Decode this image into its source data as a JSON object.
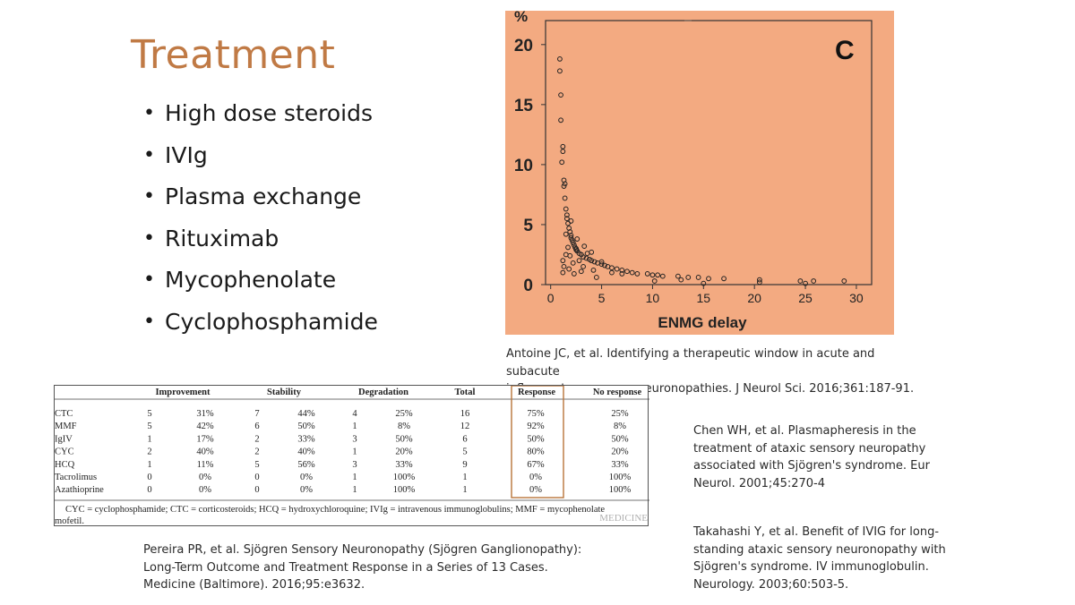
{
  "slide": {
    "title": "Treatment",
    "bullets": [
      "High dose steroids",
      "IVIg",
      "Plasma exchange",
      "Rituximab",
      "Mycophenolate",
      "Cyclophosphamide"
    ]
  },
  "colors": {
    "title": "#c07a45",
    "chart_background": "#f3aa81",
    "response_box": "#b8743a"
  },
  "chart_data": {
    "type": "scatter",
    "panel_label": "C",
    "xlabel": "ENMG delay",
    "ylabel": "%",
    "xlim": [
      -0.5,
      31.5
    ],
    "ylim": [
      0,
      22
    ],
    "xticks": [
      "0",
      "5",
      "10",
      "15",
      "20",
      "25",
      "30"
    ],
    "yticks": [
      "0",
      "5",
      "10",
      "15",
      "20"
    ],
    "grid": false,
    "x": [
      0.9,
      0.9,
      1.0,
      1.0,
      1.2,
      1.2,
      1.1,
      1.3,
      1.3,
      1.4,
      1.5,
      1.6,
      1.6,
      1.7,
      1.8,
      1.9,
      2.0,
      2.0,
      2.1,
      2.2,
      2.3,
      2.4,
      2.5,
      2.6,
      2.8,
      3.0,
      3.2,
      3.5,
      3.8,
      4.0,
      4.3,
      4.6,
      5.0,
      5.3,
      5.6,
      6.0,
      6.5,
      7.0,
      7.5,
      8.0,
      8.5,
      9.5,
      10.0,
      10.5,
      11.0,
      12.5,
      13.5,
      14.5,
      15.5,
      17.0,
      20.5,
      24.5,
      25.8,
      28.8,
      1.2,
      1.3,
      1.5,
      1.7,
      1.9,
      2.2,
      2.5,
      2.8,
      3.2,
      3.6,
      4.2,
      5.0,
      6.0,
      1.4,
      2.0,
      2.6,
      3.3,
      4.0,
      1.2,
      1.5,
      1.8,
      2.3,
      3.0,
      4.5,
      7.0,
      10.2,
      12.8,
      15.0,
      20.5,
      25.0
    ],
    "y": [
      18.8,
      17.8,
      15.8,
      13.7,
      11.5,
      11.1,
      10.2,
      8.7,
      8.2,
      7.2,
      6.3,
      5.8,
      5.5,
      5.1,
      4.7,
      4.4,
      4.1,
      3.9,
      3.7,
      3.5,
      3.3,
      3.1,
      3.0,
      2.8,
      2.6,
      2.5,
      2.3,
      2.2,
      2.1,
      2.0,
      1.9,
      1.8,
      1.7,
      1.6,
      1.5,
      1.4,
      1.3,
      1.2,
      1.1,
      1.0,
      0.9,
      0.9,
      0.8,
      0.8,
      0.7,
      0.7,
      0.6,
      0.6,
      0.5,
      0.5,
      0.4,
      0.3,
      0.3,
      0.3,
      2.0,
      1.5,
      4.2,
      3.1,
      2.4,
      1.8,
      2.9,
      2.0,
      1.5,
      2.6,
      1.2,
      1.9,
      1.0,
      8.4,
      5.3,
      3.8,
      3.2,
      2.7,
      1.0,
      2.5,
      1.3,
      0.9,
      1.1,
      0.6,
      0.9,
      0.3,
      0.4,
      0.1,
      0.2,
      0.1
    ]
  },
  "table": {
    "group_headers": [
      "Improvement",
      "Stability",
      "Degradation",
      "Total",
      "Response",
      "No response"
    ],
    "rows": [
      {
        "drug": "CTC",
        "imp_n": "5",
        "imp_p": "31%",
        "stab_n": "7",
        "stab_p": "44%",
        "deg_n": "4",
        "deg_p": "25%",
        "total": "16",
        "response": "75%",
        "no_response": "25%"
      },
      {
        "drug": "MMF",
        "imp_n": "5",
        "imp_p": "42%",
        "stab_n": "6",
        "stab_p": "50%",
        "deg_n": "1",
        "deg_p": "8%",
        "total": "12",
        "response": "92%",
        "no_response": "8%"
      },
      {
        "drug": "IgIV",
        "imp_n": "1",
        "imp_p": "17%",
        "stab_n": "2",
        "stab_p": "33%",
        "deg_n": "3",
        "deg_p": "50%",
        "total": "6",
        "response": "50%",
        "no_response": "50%"
      },
      {
        "drug": "CYC",
        "imp_n": "2",
        "imp_p": "40%",
        "stab_n": "2",
        "stab_p": "40%",
        "deg_n": "1",
        "deg_p": "20%",
        "total": "5",
        "response": "80%",
        "no_response": "20%"
      },
      {
        "drug": "HCQ",
        "imp_n": "1",
        "imp_p": "11%",
        "stab_n": "5",
        "stab_p": "56%",
        "deg_n": "3",
        "deg_p": "33%",
        "total": "9",
        "response": "67%",
        "no_response": "33%"
      },
      {
        "drug": "Tacrolimus",
        "imp_n": "0",
        "imp_p": "0%",
        "stab_n": "0",
        "stab_p": "0%",
        "deg_n": "1",
        "deg_p": "100%",
        "total": "1",
        "response": "0%",
        "no_response": "100%"
      },
      {
        "drug": "Azathioprine",
        "imp_n": "0",
        "imp_p": "0%",
        "stab_n": "0",
        "stab_p": "0%",
        "deg_n": "1",
        "deg_p": "100%",
        "total": "1",
        "response": "0%",
        "no_response": "100%"
      }
    ],
    "footnote_line1": "CYC = cyclophosphamide; CTC = corticosteroids; HCQ = hydroxychloroquine; IVIg = intravenous immunoglobulins; MMF =   mycophenolate",
    "footnote_line2": "mofetil.",
    "watermark": "MEDICINE"
  },
  "citations": {
    "antoine": [
      "Antoine JC, et al. Identifying a therapeutic window in acute and subacute",
      "inflammatory sensory neuronopathies. J Neurol Sci. 2016;361:187-91."
    ],
    "chen": [
      "Chen WH, et al. Plasmapheresis in the",
      "treatment of ataxic sensory neuropathy",
      "associated with Sjögren's syndrome. Eur",
      "Neurol. 2001;45:270-4"
    ],
    "takahashi": [
      "Takahashi Y, et al. Benefit of IVIG for long-",
      "standing ataxic sensory neuronopathy with",
      "Sjögren's syndrome. IV immunoglobulin.",
      "Neurology. 2003;60:503-5."
    ],
    "pereira": [
      "Pereira PR, et al. Sjögren Sensory Neuronopathy (Sjögren Ganglionopathy):",
      "Long-Term Outcome and Treatment Response in a Series of 13 Cases.",
      "Medicine (Baltimore). 2016;95:e3632."
    ]
  }
}
